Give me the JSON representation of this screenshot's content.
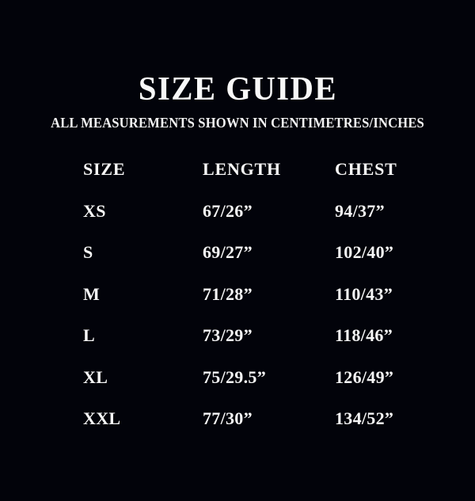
{
  "page": {
    "background_color": "#02030a",
    "text_color": "#f6f6f6"
  },
  "header": {
    "title": "SIZE GUIDE",
    "subtitle": "ALL MEASUREMENTS SHOWN IN CENTIMETRES/INCHES"
  },
  "table": {
    "columns": [
      "SIZE",
      "LENGTH",
      "CHEST"
    ],
    "rows": [
      {
        "size": "XS",
        "length_value": "67/26”",
        "chest_value": "94/37”"
      },
      {
        "size": "S",
        "length_value": "69/27”",
        "chest_value": "102/40”"
      },
      {
        "size": "M",
        "length_value": "71/28”",
        "chest_value": "110/43”"
      },
      {
        "size": "L",
        "length_value": "73/29”",
        "chest_value": "118/46”"
      },
      {
        "size": "XL",
        "length_value": "75/29.5”",
        "chest_value": "126/49”"
      },
      {
        "size": "XXL",
        "length_value": "77/30”",
        "chest_value": "134/52”"
      }
    ]
  }
}
